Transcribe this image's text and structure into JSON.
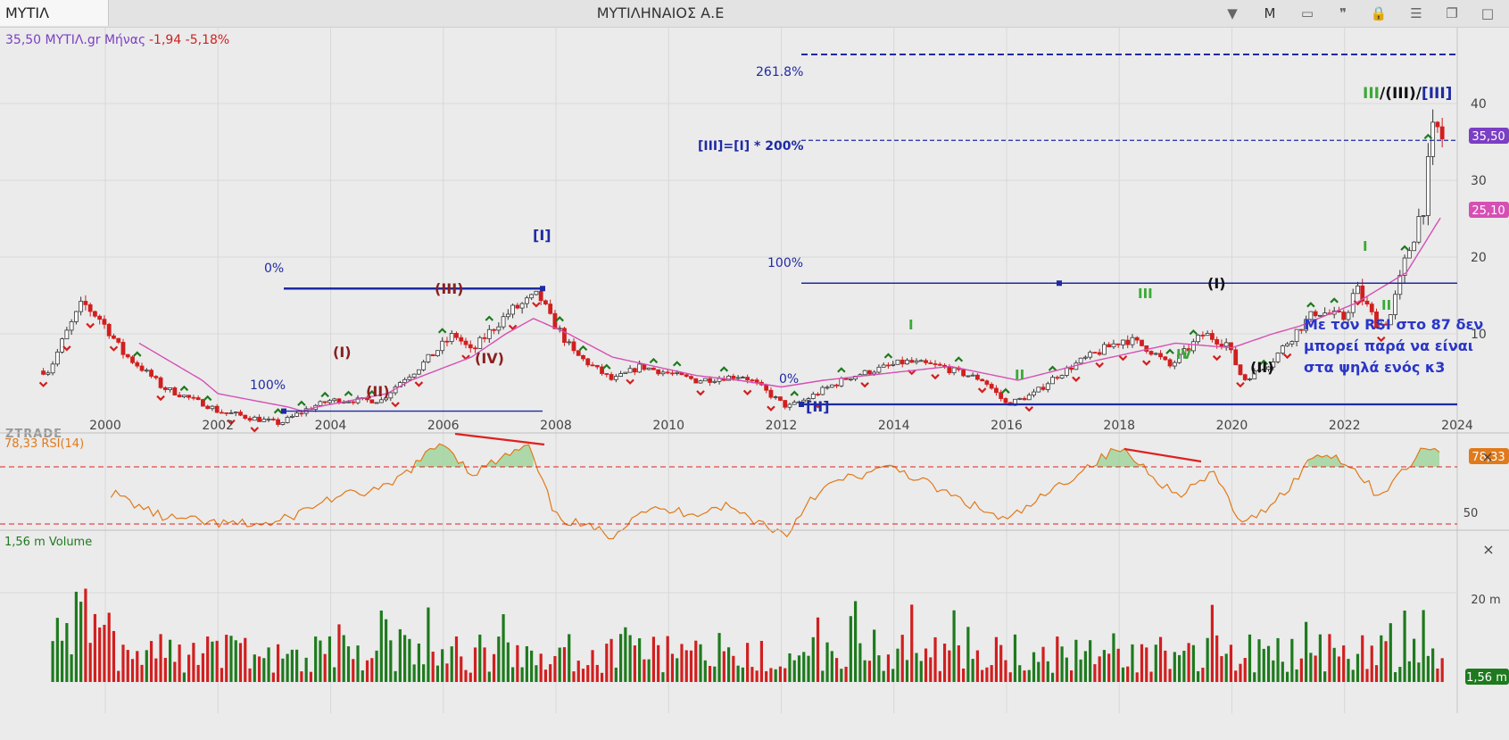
{
  "toolbar": {
    "symbol": "ΜΥΤΙΛ",
    "title": "ΜΥΤΙΛΗΝΑΙΟΣ Α.Ε",
    "period_button": "M"
  },
  "price_panel": {
    "legend_price": "35,50 ΜΥΤΙΛ.gr Μήνας",
    "legend_change": "-1,94 -5,18%",
    "watermark": "ZTRADE",
    "last_price_label": "35,50",
    "ma_label": "25,10",
    "y_ticks": [
      "40",
      "30",
      "20",
      "10"
    ],
    "x_ticks": [
      "2000",
      "2002",
      "2004",
      "2006",
      "2008",
      "2010",
      "2012",
      "2014",
      "2016",
      "2018",
      "2020",
      "2022",
      "2024"
    ],
    "fib_labels": {
      "f2618": "261.8%",
      "f200": "[III]=[I] * 200%",
      "f100_right": "100%",
      "f0_left": "0%",
      "f100_left": "100%",
      "f0_right": "0%"
    },
    "wave_labels": {
      "w_I_big": "[I]",
      "w_II_big": "[II]",
      "w_III_paren": "(III)",
      "w_I_paren": "(I)",
      "w_II_paren": "(II)",
      "w_IV_paren": "(IV)",
      "w2_I": "(I)",
      "w2_II": "(II)",
      "g_I_2014": "I",
      "g_II_2016": "II",
      "g_III_2018": "III",
      "g_IV_2019": "IV",
      "g_I_2022": "I",
      "g_II_2022": "II",
      "top_green": "III",
      "top_black": "/(III)/",
      "top_blue": "[III]"
    },
    "annotation": [
      "Με τον RSI στο 87 δεν",
      "μπορεί παρά να είναι",
      "στα ψηλά ενός κ3"
    ]
  },
  "rsi_panel": {
    "legend": "78,33 RSI(14)",
    "last_label": "78,33",
    "tick_50": "50"
  },
  "volume_panel": {
    "legend": "1,56 m Volume",
    "tick": "20 m",
    "last_label": "1,56 m"
  },
  "colors": {
    "up": "#1e7a1e",
    "down": "#d11f1f",
    "fib": "#1f2aa3",
    "ma": "#d64fb4",
    "rsi": "#e07a1a",
    "wave_green": "#3aaa35",
    "wave_darkred": "#8a1f1f",
    "legend_purple": "#7b3fc4"
  },
  "chart_data": {
    "type": "candlestick",
    "period": "monthly",
    "x_range": [
      1998.8,
      2024.0
    ],
    "y_range_price": [
      2,
      48
    ],
    "price_points": [
      [
        1999.0,
        6
      ],
      [
        1999.6,
        14
      ],
      [
        1999.9,
        12
      ],
      [
        2000.3,
        8
      ],
      [
        2001.0,
        4.5
      ],
      [
        2002.0,
        2.8
      ],
      [
        2003.1,
        2.2
      ],
      [
        2004.0,
        3.5
      ],
      [
        2004.9,
        3.5
      ],
      [
        2005.5,
        6
      ],
      [
        2006.2,
        10
      ],
      [
        2006.5,
        8
      ],
      [
        2007.2,
        13
      ],
      [
        2007.7,
        15
      ],
      [
        2007.9,
        12
      ],
      [
        2008.3,
        8
      ],
      [
        2009.0,
        5
      ],
      [
        2009.5,
        6.5
      ],
      [
        2010.5,
        5
      ],
      [
        2011.3,
        5.5
      ],
      [
        2012.1,
        3
      ],
      [
        2012.4,
        3.5
      ],
      [
        2013.3,
        5.5
      ],
      [
        2014.2,
        7
      ],
      [
        2014.8,
        6.5
      ],
      [
        2015.6,
        5
      ],
      [
        2016.0,
        3.2
      ],
      [
        2016.5,
        4
      ],
      [
        2017.3,
        7
      ],
      [
        2018.1,
        9.5
      ],
      [
        2018.5,
        8.5
      ],
      [
        2018.9,
        6.5
      ],
      [
        2019.5,
        10
      ],
      [
        2019.9,
        9
      ],
      [
        2020.2,
        5
      ],
      [
        2020.7,
        7
      ],
      [
        2021.5,
        13
      ],
      [
        2022.0,
        12
      ],
      [
        2022.2,
        16
      ],
      [
        2022.6,
        11
      ],
      [
        2022.8,
        12
      ],
      [
        2023.1,
        20
      ],
      [
        2023.4,
        27
      ],
      [
        2023.6,
        37.4
      ],
      [
        2023.7,
        35.5
      ]
    ],
    "ma_points": [
      [
        2000.6,
        9
      ],
      [
        2002.0,
        4
      ],
      [
        2003.5,
        2.8
      ],
      [
        2005.0,
        4
      ],
      [
        2006.5,
        7.5
      ],
      [
        2007.6,
        12
      ],
      [
        2009.0,
        7.5
      ],
      [
        2010.5,
        5.5
      ],
      [
        2012.0,
        4.5
      ],
      [
        2013.5,
        5.5
      ],
      [
        2015.0,
        6.5
      ],
      [
        2016.2,
        5
      ],
      [
        2017.5,
        7
      ],
      [
        2019.0,
        9
      ],
      [
        2020.0,
        8.5
      ],
      [
        2021.2,
        11
      ],
      [
        2022.2,
        14
      ],
      [
        2023.1,
        18
      ],
      [
        2023.7,
        25.1
      ]
    ],
    "fib_levels": {
      "261.8%": 46.4,
      "200%": 35.2,
      "100%": 16.6,
      "0%": 3.2,
      "left_0%": 15.9,
      "left_100%": 2.8
    },
    "rsi_points": [
      [
        2000.1,
        52
      ],
      [
        2001.0,
        35
      ],
      [
        2002.0,
        30
      ],
      [
        2003.0,
        30
      ],
      [
        2004.0,
        48
      ],
      [
        2005.0,
        55
      ],
      [
        2006.0,
        88
      ],
      [
        2006.5,
        65
      ],
      [
        2007.5,
        85
      ],
      [
        2008.0,
        35
      ],
      [
        2009.0,
        22
      ],
      [
        2009.5,
        40
      ],
      [
        2010.5,
        38
      ],
      [
        2011.0,
        43
      ],
      [
        2012.1,
        22
      ],
      [
        2012.5,
        48
      ],
      [
        2013.0,
        60
      ],
      [
        2014.0,
        70
      ],
      [
        2015.0,
        50
      ],
      [
        2016.0,
        32
      ],
      [
        2016.5,
        45
      ],
      [
        2017.5,
        72
      ],
      [
        2018.0,
        83
      ],
      [
        2018.5,
        68
      ],
      [
        2019.0,
        50
      ],
      [
        2019.7,
        65
      ],
      [
        2020.2,
        28
      ],
      [
        2021.0,
        55
      ],
      [
        2021.5,
        80
      ],
      [
        2022.0,
        75
      ],
      [
        2022.6,
        50
      ],
      [
        2023.0,
        65
      ],
      [
        2023.5,
        86
      ],
      [
        2023.7,
        78.33
      ]
    ],
    "rsi_levels": [
      70,
      30
    ],
    "volume_last_m": 1.56
  }
}
